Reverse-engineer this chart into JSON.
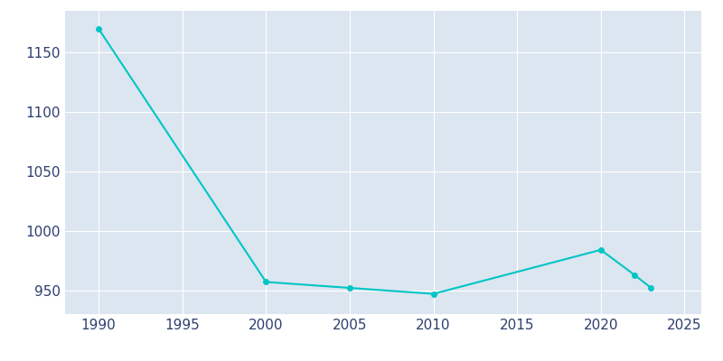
{
  "years": [
    1990,
    2000,
    2005,
    2010,
    2020,
    2022,
    2023
  ],
  "population": [
    1170,
    957,
    952,
    947,
    984,
    963,
    952
  ],
  "line_color": "#00C5C5",
  "marker_color": "#00C5C5",
  "background_color": "#FFFFFF",
  "plot_background_color": "#DCE6F0",
  "grid_color": "#FFFFFF",
  "tick_color": "#2E3F6E",
  "xlim": [
    1988,
    2026
  ],
  "ylim": [
    930,
    1185
  ],
  "xticks": [
    1990,
    1995,
    2000,
    2005,
    2010,
    2015,
    2020,
    2025
  ],
  "yticks": [
    950,
    1000,
    1050,
    1100,
    1150
  ],
  "figsize": [
    8.0,
    4.0
  ],
  "dpi": 100
}
